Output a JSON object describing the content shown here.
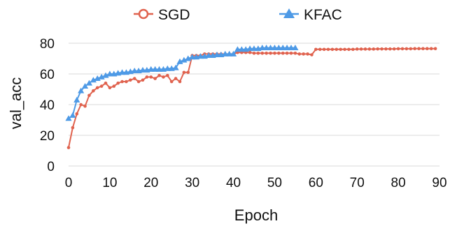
{
  "chart_data": {
    "type": "line",
    "title": "",
    "xlabel": "Epoch",
    "ylabel": "val_acc",
    "xlim": [
      0,
      90
    ],
    "ylim": [
      0,
      80
    ],
    "xticks": [
      "0",
      "10",
      "20",
      "30",
      "40",
      "50",
      "60",
      "70",
      "80",
      "90"
    ],
    "yticks": [
      "0",
      "20",
      "40",
      "60",
      "80"
    ],
    "grid": "horizontal",
    "legend": "top-center",
    "series": [
      {
        "name": "SGD",
        "color": "#e0624e",
        "marker": "circle",
        "x": [
          0,
          1,
          2,
          3,
          4,
          5,
          6,
          7,
          8,
          9,
          10,
          11,
          12,
          13,
          14,
          15,
          16,
          17,
          18,
          19,
          20,
          21,
          22,
          23,
          24,
          25,
          26,
          27,
          28,
          29,
          30,
          31,
          32,
          33,
          34,
          35,
          36,
          37,
          38,
          39,
          40,
          41,
          42,
          43,
          44,
          45,
          46,
          47,
          48,
          49,
          50,
          51,
          52,
          53,
          54,
          55,
          56,
          57,
          58,
          59,
          60,
          61,
          62,
          63,
          64,
          65,
          66,
          67,
          68,
          69,
          70,
          71,
          72,
          73,
          74,
          75,
          76,
          77,
          78,
          79,
          80,
          81,
          82,
          83,
          84,
          85,
          86,
          87,
          88,
          89
        ],
        "y": [
          12,
          25,
          34,
          40,
          39,
          46,
          49,
          51,
          52,
          54,
          51,
          52,
          54,
          55,
          55,
          56,
          57,
          55,
          56,
          58,
          58,
          57,
          59,
          58,
          59,
          55,
          57,
          55,
          61,
          61,
          72,
          72,
          72,
          73,
          73,
          73,
          73,
          73,
          73,
          73,
          73,
          74,
          74,
          74,
          74,
          73.5,
          73.5,
          73.5,
          73.5,
          73.5,
          73.5,
          73.5,
          73.5,
          73.5,
          73.5,
          73.5,
          73,
          73,
          73,
          72.5,
          76,
          76,
          76,
          76,
          76,
          76,
          76,
          76,
          76,
          76,
          76.2,
          76.2,
          76.2,
          76.2,
          76.2,
          76.3,
          76.3,
          76.3,
          76.3,
          76.3,
          76.4,
          76.4,
          76.4,
          76.4,
          76.5,
          76.5,
          76.5,
          76.5,
          76.5,
          76.5
        ]
      },
      {
        "name": "KFAC",
        "color": "#4e9ae6",
        "marker": "triangle",
        "x": [
          0,
          1,
          2,
          3,
          4,
          5,
          6,
          7,
          8,
          9,
          10,
          11,
          12,
          13,
          14,
          15,
          16,
          17,
          18,
          19,
          20,
          21,
          22,
          23,
          24,
          25,
          26,
          27,
          28,
          29,
          30,
          31,
          32,
          33,
          34,
          35,
          36,
          37,
          38,
          39,
          40,
          41,
          42,
          43,
          44,
          45,
          46,
          47,
          48,
          49,
          50,
          51,
          52,
          53,
          54,
          55
        ],
        "y": [
          31,
          33,
          43,
          49,
          52,
          54,
          56,
          57,
          58,
          59,
          60,
          60,
          60.5,
          61,
          61,
          61.5,
          62,
          62,
          62.5,
          62.5,
          63,
          63,
          63,
          63,
          63.5,
          63.5,
          64,
          68,
          69,
          70,
          71,
          71,
          71.5,
          71.5,
          72,
          72,
          72.5,
          72.5,
          73,
          73,
          73,
          76,
          76,
          76,
          76.5,
          76.5,
          76.5,
          77,
          77,
          77,
          77,
          77,
          77,
          77,
          77,
          77
        ]
      }
    ]
  }
}
